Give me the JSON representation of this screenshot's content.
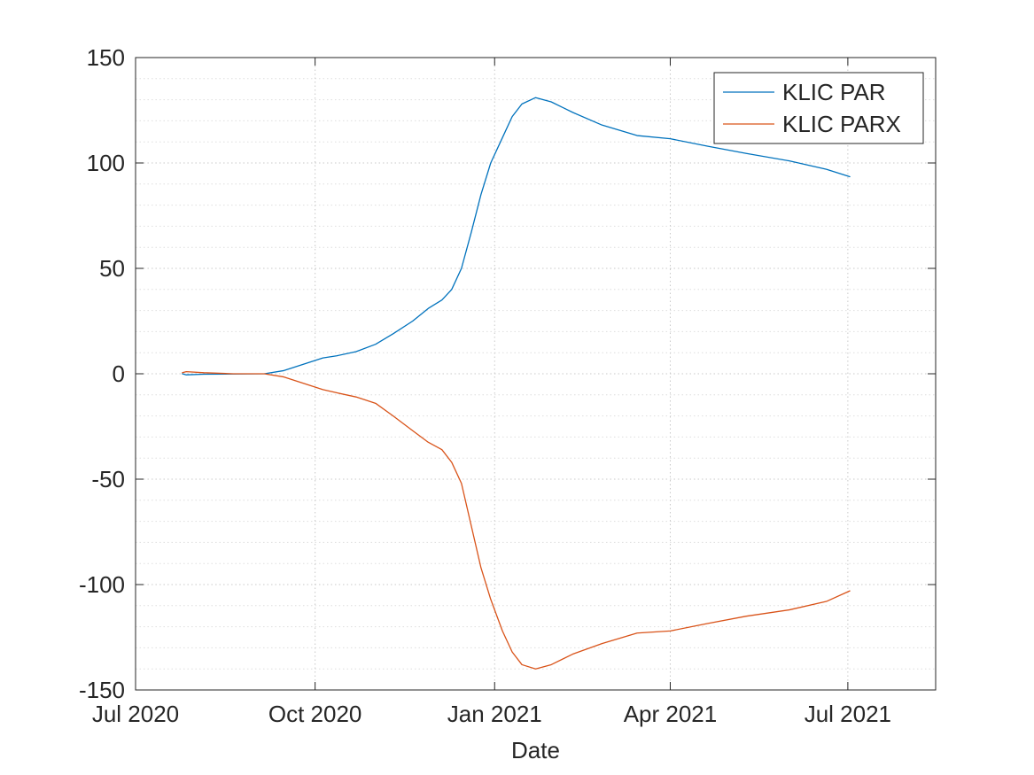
{
  "chart_data": {
    "type": "line",
    "xlabel": "Date",
    "ylabel": "",
    "title": "",
    "xlim": [
      "2020-07-01",
      "2021-08-15"
    ],
    "ylim": [
      -150,
      150
    ],
    "x_ticks": [
      {
        "date": "2020-07-01",
        "label": "Jul 2020"
      },
      {
        "date": "2020-10-01",
        "label": "Oct 2020"
      },
      {
        "date": "2021-01-01",
        "label": "Jan 2021"
      },
      {
        "date": "2021-04-01",
        "label": "Apr 2021"
      },
      {
        "date": "2021-07-01",
        "label": "Jul 2021"
      }
    ],
    "y_ticks": [
      150,
      100,
      50,
      0,
      -50,
      -100,
      -150
    ],
    "y_tick_labels": [
      "150",
      "100",
      "50",
      "0",
      "-50",
      "-100",
      "-150"
    ],
    "grid": true,
    "minor_grid": true,
    "legend_position": "top-right",
    "series": [
      {
        "name": "KLIC PAR",
        "color": "#0072BD",
        "points": [
          [
            "2020-07-25",
            0
          ],
          [
            "2020-07-27",
            -0.5
          ],
          [
            "2020-08-05",
            -0.2
          ],
          [
            "2020-08-20",
            -0.1
          ],
          [
            "2020-09-05",
            0
          ],
          [
            "2020-09-15",
            1.5
          ],
          [
            "2020-09-25",
            4.5
          ],
          [
            "2020-10-05",
            7.5
          ],
          [
            "2020-10-12",
            8.5
          ],
          [
            "2020-10-22",
            10.5
          ],
          [
            "2020-11-01",
            14
          ],
          [
            "2020-11-10",
            19
          ],
          [
            "2020-11-20",
            25
          ],
          [
            "2020-11-28",
            31
          ],
          [
            "2020-12-05",
            35
          ],
          [
            "2020-12-10",
            40
          ],
          [
            "2020-12-15",
            50
          ],
          [
            "2020-12-20",
            67
          ],
          [
            "2020-12-25",
            85
          ],
          [
            "2020-12-30",
            100
          ],
          [
            "2021-01-05",
            112
          ],
          [
            "2021-01-10",
            122
          ],
          [
            "2021-01-15",
            128
          ],
          [
            "2021-01-22",
            131
          ],
          [
            "2021-01-30",
            129
          ],
          [
            "2021-02-10",
            124
          ],
          [
            "2021-02-25",
            118
          ],
          [
            "2021-03-15",
            113
          ],
          [
            "2021-04-01",
            111.5
          ],
          [
            "2021-04-20",
            108
          ],
          [
            "2021-05-10",
            104.5
          ],
          [
            "2021-06-01",
            101
          ],
          [
            "2021-06-20",
            97
          ],
          [
            "2021-07-02",
            93.5
          ]
        ]
      },
      {
        "name": "KLIC PARX",
        "color": "#D95319",
        "points": [
          [
            "2020-07-25",
            0.5
          ],
          [
            "2020-07-27",
            1
          ],
          [
            "2020-08-05",
            0.5
          ],
          [
            "2020-08-20",
            0
          ],
          [
            "2020-09-05",
            0
          ],
          [
            "2020-09-15",
            -1.5
          ],
          [
            "2020-09-25",
            -4.5
          ],
          [
            "2020-10-05",
            -7.5
          ],
          [
            "2020-10-12",
            -9
          ],
          [
            "2020-10-22",
            -11
          ],
          [
            "2020-11-01",
            -14
          ],
          [
            "2020-11-10",
            -20
          ],
          [
            "2020-11-20",
            -27
          ],
          [
            "2020-11-28",
            -32.5
          ],
          [
            "2020-12-05",
            -36
          ],
          [
            "2020-12-10",
            -42
          ],
          [
            "2020-12-15",
            -52
          ],
          [
            "2020-12-20",
            -72
          ],
          [
            "2020-12-25",
            -92
          ],
          [
            "2020-12-30",
            -107
          ],
          [
            "2021-01-05",
            -122
          ],
          [
            "2021-01-10",
            -132
          ],
          [
            "2021-01-15",
            -138
          ],
          [
            "2021-01-22",
            -140
          ],
          [
            "2021-01-30",
            -138
          ],
          [
            "2021-02-10",
            -133
          ],
          [
            "2021-02-25",
            -128
          ],
          [
            "2021-03-15",
            -123
          ],
          [
            "2021-04-01",
            -122
          ],
          [
            "2021-04-20",
            -118.5
          ],
          [
            "2021-05-10",
            -115
          ],
          [
            "2021-06-01",
            -112
          ],
          [
            "2021-06-20",
            -108
          ],
          [
            "2021-07-02",
            -103
          ]
        ]
      }
    ]
  }
}
